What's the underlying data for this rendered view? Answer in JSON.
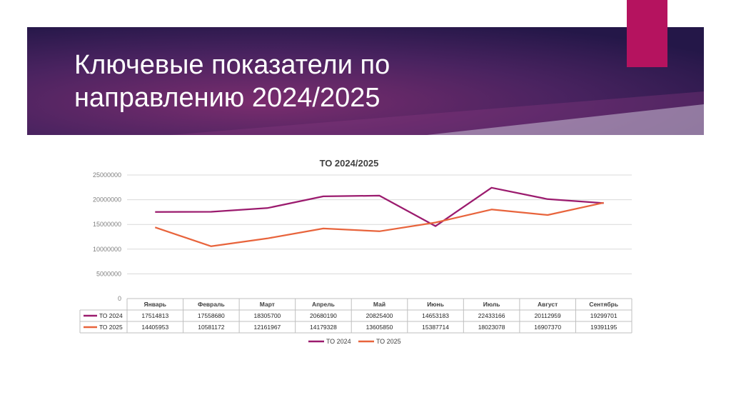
{
  "slide": {
    "title_line1": "Ключевые показатели по",
    "title_line2": "направлению 2024/2025",
    "banner_colors": [
      "#2a1a4f",
      "#6b2a6c",
      "#4a2a7a"
    ],
    "accent_color": "#b5135f"
  },
  "chart_data": {
    "type": "line",
    "title": "ТО 2024/2025",
    "categories": [
      "Январь",
      "Февраль",
      "Март",
      "Апрель",
      "Май",
      "Июнь",
      "Июль",
      "Август",
      "Сентябрь"
    ],
    "ylim": [
      0,
      25000000
    ],
    "yticks": [
      0,
      5000000,
      10000000,
      15000000,
      20000000,
      25000000
    ],
    "grid": true,
    "legend": "bottom",
    "data_table": true,
    "series": [
      {
        "name": "ТО 2024",
        "color": "#9b1b6e",
        "values": [
          17514813,
          17558680,
          18305700,
          20680190,
          20825400,
          14653183,
          22433166,
          20112959,
          19299701
        ]
      },
      {
        "name": "ТО 2025",
        "color": "#e8643c",
        "values": [
          14405953,
          10581172,
          12161967,
          14179328,
          13605850,
          15387714,
          18023078,
          16907370,
          19391195
        ]
      }
    ]
  }
}
